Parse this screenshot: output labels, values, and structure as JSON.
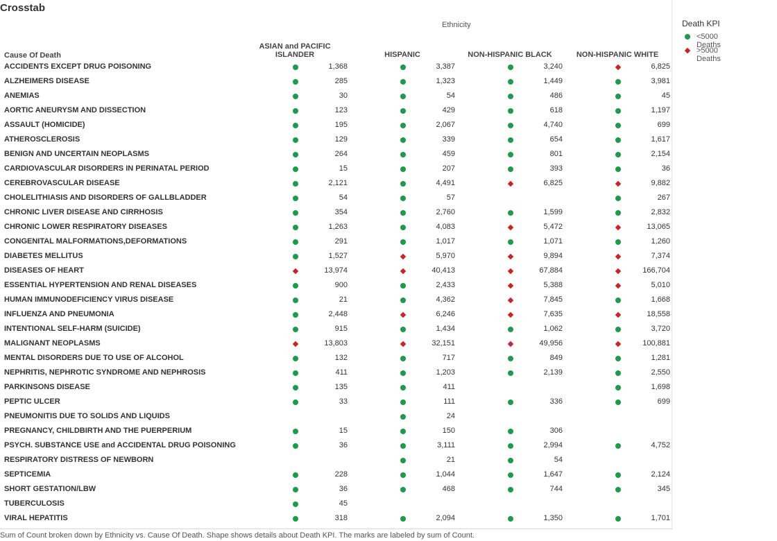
{
  "title": "Crosstab",
  "column_group": "Ethnicity",
  "row_header": "Cause Of Death",
  "columns": [
    {
      "label_line1": "ASIAN  and  PACIFIC",
      "label_line2": "ISLANDER"
    },
    {
      "label_line1": "",
      "label_line2": "HISPANIC"
    },
    {
      "label_line1": "",
      "label_line2": "NON-HISPANIC BLACK"
    },
    {
      "label_line1": "",
      "label_line2": "NON-HISPANIC WHITE"
    }
  ],
  "legend": {
    "title": "Death KPI",
    "items": [
      {
        "shape": "circle",
        "color": "#1e9a4a",
        "label": "<5000 Deaths"
      },
      {
        "shape": "diamond",
        "color": "#cc2222",
        "label": ">5000 Deaths"
      }
    ]
  },
  "rows": [
    {
      "cause": "ACCIDENTS EXCEPT DRUG POISONING",
      "cells": [
        [
          "1,368",
          "c"
        ],
        [
          "3,387",
          "c"
        ],
        [
          "3,240",
          "c"
        ],
        [
          "6,825",
          "d"
        ]
      ]
    },
    {
      "cause": "ALZHEIMERS DISEASE",
      "cells": [
        [
          "285",
          "c"
        ],
        [
          "1,323",
          "c"
        ],
        [
          "1,449",
          "c"
        ],
        [
          "3,981",
          "c"
        ]
      ]
    },
    {
      "cause": "ANEMIAS",
      "cells": [
        [
          "30",
          "c"
        ],
        [
          "54",
          "c"
        ],
        [
          "486",
          "c"
        ],
        [
          "45",
          "c"
        ]
      ]
    },
    {
      "cause": "AORTIC ANEURYSM AND DISSECTION",
      "cells": [
        [
          "123",
          "c"
        ],
        [
          "429",
          "c"
        ],
        [
          "618",
          "c"
        ],
        [
          "1,197",
          "c"
        ]
      ]
    },
    {
      "cause": "ASSAULT (HOMICIDE)",
      "cells": [
        [
          "195",
          "c"
        ],
        [
          "2,067",
          "c"
        ],
        [
          "4,740",
          "c"
        ],
        [
          "699",
          "c"
        ]
      ]
    },
    {
      "cause": "ATHEROSCLEROSIS",
      "cells": [
        [
          "129",
          "c"
        ],
        [
          "339",
          "c"
        ],
        [
          "654",
          "c"
        ],
        [
          "1,617",
          "c"
        ]
      ]
    },
    {
      "cause": "BENIGN AND UNCERTAIN NEOPLASMS",
      "cells": [
        [
          "264",
          "c"
        ],
        [
          "459",
          "c"
        ],
        [
          "801",
          "c"
        ],
        [
          "2,154",
          "c"
        ]
      ]
    },
    {
      "cause": "CARDIOVASCULAR DISORDERS IN PERINATAL PERIOD",
      "cells": [
        [
          "15",
          "c"
        ],
        [
          "207",
          "c"
        ],
        [
          "393",
          "c"
        ],
        [
          "36",
          "c"
        ]
      ]
    },
    {
      "cause": "CEREBROVASCULAR DISEASE",
      "cells": [
        [
          "2,121",
          "c"
        ],
        [
          "4,491",
          "c"
        ],
        [
          "6,825",
          "d"
        ],
        [
          "9,882",
          "d"
        ]
      ]
    },
    {
      "cause": "CHOLELITHIASIS AND DISORDERS OF GALLBLADDER",
      "cells": [
        [
          "54",
          "c"
        ],
        [
          "57",
          "c"
        ],
        null,
        [
          "267",
          "c"
        ]
      ]
    },
    {
      "cause": "CHRONIC LIVER DISEASE AND CIRRHOSIS",
      "cells": [
        [
          "354",
          "c"
        ],
        [
          "2,760",
          "c"
        ],
        [
          "1,599",
          "c"
        ],
        [
          "2,832",
          "c"
        ]
      ]
    },
    {
      "cause": "CHRONIC LOWER RESPIRATORY DISEASES",
      "cells": [
        [
          "1,263",
          "c"
        ],
        [
          "4,083",
          "c"
        ],
        [
          "5,472",
          "d"
        ],
        [
          "13,065",
          "d"
        ]
      ]
    },
    {
      "cause": "CONGENITAL MALFORMATIONS,DEFORMATIONS",
      "cells": [
        [
          "291",
          "c"
        ],
        [
          "1,017",
          "c"
        ],
        [
          "1,071",
          "c"
        ],
        [
          "1,260",
          "c"
        ]
      ]
    },
    {
      "cause": "DIABETES MELLITUS",
      "cells": [
        [
          "1,527",
          "c"
        ],
        [
          "5,970",
          "d"
        ],
        [
          "9,894",
          "d"
        ],
        [
          "7,374",
          "d"
        ]
      ]
    },
    {
      "cause": "DISEASES OF HEART",
      "cells": [
        [
          "13,974",
          "d"
        ],
        [
          "40,413",
          "d"
        ],
        [
          "67,884",
          "d"
        ],
        [
          "166,704",
          "d"
        ]
      ]
    },
    {
      "cause": "ESSENTIAL HYPERTENSION AND RENAL DISEASES",
      "cells": [
        [
          "900",
          "c"
        ],
        [
          "2,433",
          "c"
        ],
        [
          "5,388",
          "d"
        ],
        [
          "5,010",
          "d"
        ]
      ]
    },
    {
      "cause": "HUMAN IMMUNODEFICIENCY VIRUS DISEASE",
      "cells": [
        [
          "21",
          "c"
        ],
        [
          "4,362",
          "c"
        ],
        [
          "7,845",
          "d"
        ],
        [
          "1,668",
          "c"
        ]
      ]
    },
    {
      "cause": "INFLUENZA AND PNEUMONIA",
      "cells": [
        [
          "2,448",
          "c"
        ],
        [
          "6,246",
          "d"
        ],
        [
          "7,635",
          "d"
        ],
        [
          "18,558",
          "d"
        ]
      ]
    },
    {
      "cause": "INTENTIONAL SELF-HARM (SUICIDE)",
      "cells": [
        [
          "915",
          "c"
        ],
        [
          "1,434",
          "c"
        ],
        [
          "1,062",
          "c"
        ],
        [
          "3,720",
          "c"
        ]
      ]
    },
    {
      "cause": "MALIGNANT NEOPLASMS",
      "cells": [
        [
          "13,803",
          "d"
        ],
        [
          "32,151",
          "d"
        ],
        [
          "49,956",
          "d"
        ],
        [
          "100,881",
          "d"
        ]
      ]
    },
    {
      "cause": "MENTAL DISORDERS DUE TO USE OF ALCOHOL",
      "cells": [
        [
          "132",
          "c"
        ],
        [
          "717",
          "c"
        ],
        [
          "849",
          "c"
        ],
        [
          "1,281",
          "c"
        ]
      ]
    },
    {
      "cause": "NEPHRITIS, NEPHROTIC SYNDROME AND NEPHROSIS",
      "cells": [
        [
          "411",
          "c"
        ],
        [
          "1,203",
          "c"
        ],
        [
          "2,139",
          "c"
        ],
        [
          "2,550",
          "c"
        ]
      ]
    },
    {
      "cause": "PARKINSONS DISEASE",
      "cells": [
        [
          "135",
          "c"
        ],
        [
          "411",
          "c"
        ],
        null,
        [
          "1,698",
          "c"
        ]
      ]
    },
    {
      "cause": "PEPTIC ULCER",
      "cells": [
        [
          "33",
          "c"
        ],
        [
          "111",
          "c"
        ],
        [
          "336",
          "c"
        ],
        [
          "699",
          "c"
        ]
      ]
    },
    {
      "cause": "PNEUMONITIS DUE TO SOLIDS AND LIQUIDS",
      "cells": [
        null,
        [
          "24",
          "c"
        ],
        null,
        null
      ]
    },
    {
      "cause": "PREGNANCY, CHILDBIRTH AND THE PUERPERIUM",
      "cells": [
        [
          "15",
          "c"
        ],
        [
          "150",
          "c"
        ],
        [
          "306",
          "c"
        ],
        null
      ]
    },
    {
      "cause": "PSYCH. SUBSTANCE USE  and  ACCIDENTAL DRUG POISONING",
      "cells": [
        [
          "36",
          "c"
        ],
        [
          "3,111",
          "c"
        ],
        [
          "2,994",
          "c"
        ],
        [
          "4,752",
          "c"
        ]
      ]
    },
    {
      "cause": "RESPIRATORY DISTRESS OF NEWBORN",
      "cells": [
        null,
        [
          "21",
          "c"
        ],
        [
          "54",
          "c"
        ],
        null
      ]
    },
    {
      "cause": "SEPTICEMIA",
      "cells": [
        [
          "228",
          "c"
        ],
        [
          "1,044",
          "c"
        ],
        [
          "1,647",
          "c"
        ],
        [
          "2,124",
          "c"
        ]
      ]
    },
    {
      "cause": "SHORT GESTATION/LBW",
      "cells": [
        [
          "36",
          "c"
        ],
        [
          "468",
          "c"
        ],
        [
          "744",
          "c"
        ],
        [
          "345",
          "c"
        ]
      ]
    },
    {
      "cause": "TUBERCULOSIS",
      "cells": [
        [
          "45",
          "c"
        ],
        null,
        null,
        null
      ]
    },
    {
      "cause": "VIRAL HEPATITIS",
      "cells": [
        [
          "318",
          "c"
        ],
        [
          "2,094",
          "c"
        ],
        [
          "1,350",
          "c"
        ],
        [
          "1,701",
          "c"
        ]
      ]
    }
  ],
  "footer": "Sum of Count broken down by Ethnicity vs. Cause Of Death.  Shape shows details about Death KPI.  The marks are labeled by sum of Count."
}
